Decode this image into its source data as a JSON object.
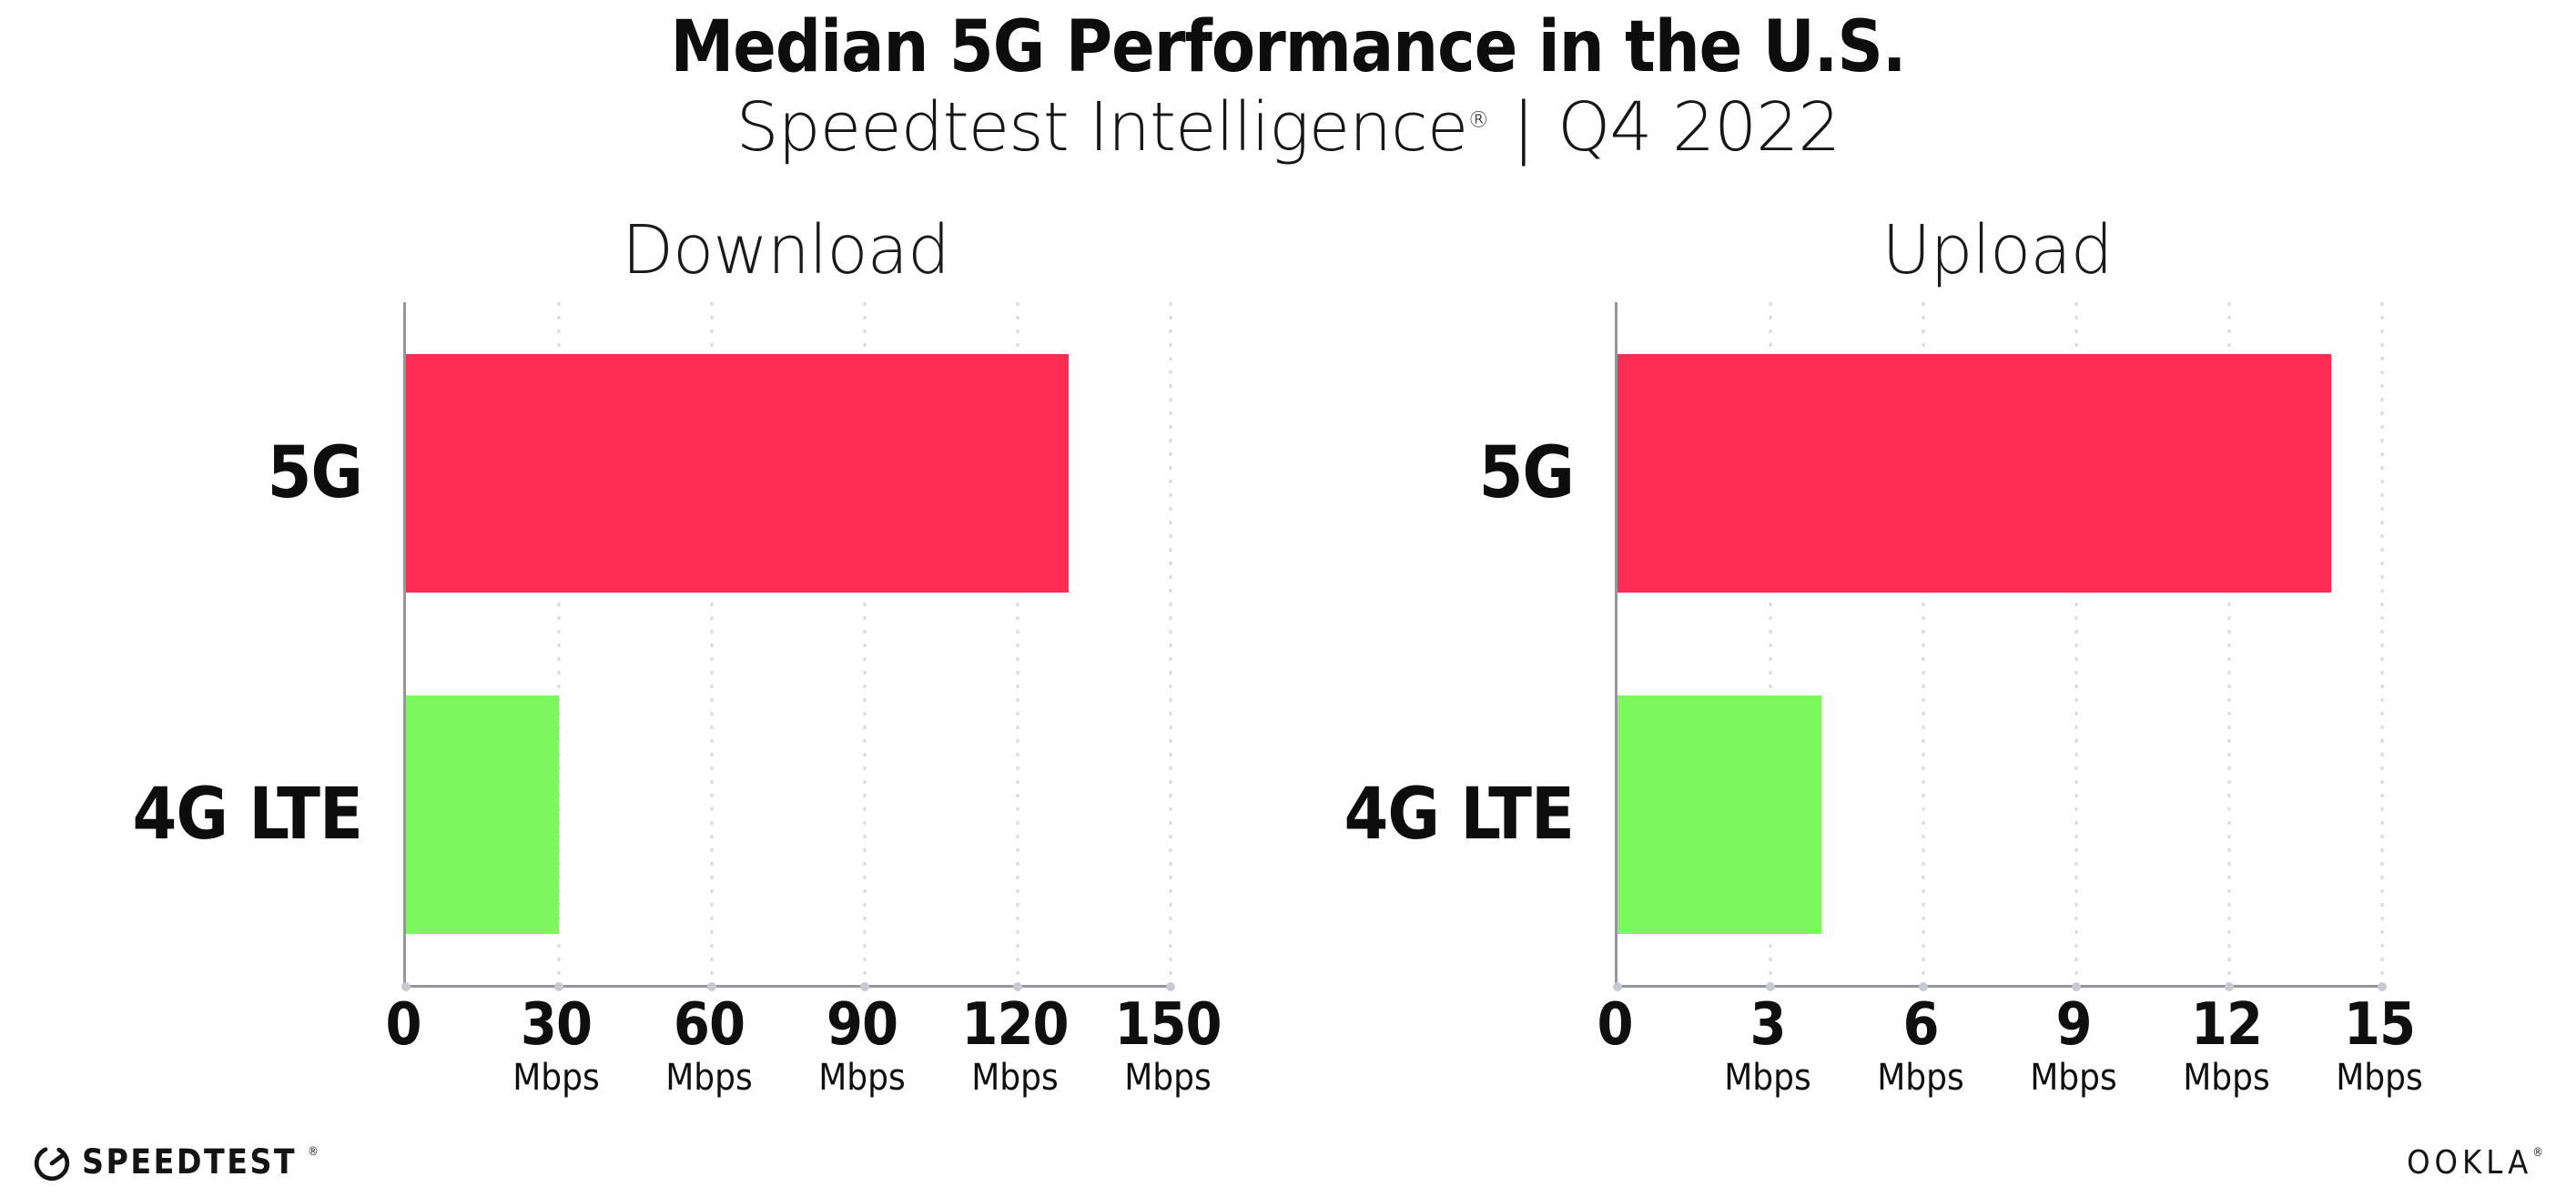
{
  "header": {
    "title": "Median 5G Performance in the U.S.",
    "subtitle_brand": "Speedtest Intelligence",
    "subtitle_reg": "®",
    "subtitle_divider": "|",
    "subtitle_period": "Q4 2022"
  },
  "chart_data": [
    {
      "type": "bar",
      "orientation": "horizontal",
      "title": "Download",
      "categories": [
        "5G",
        "4G LTE"
      ],
      "values": [
        130,
        30
      ],
      "unit": "Mbps",
      "xlabel": "",
      "ylabel": "",
      "xlim": [
        0,
        150
      ],
      "xticks": [
        0,
        30,
        60,
        90,
        120,
        150
      ],
      "bar_colors": [
        "#FF2D55",
        "#7CF85E"
      ],
      "grid": "dotted-vertical",
      "legend": "none"
    },
    {
      "type": "bar",
      "orientation": "horizontal",
      "title": "Upload",
      "categories": [
        "5G",
        "4G LTE"
      ],
      "values": [
        14,
        4
      ],
      "unit": "Mbps",
      "xlabel": "",
      "ylabel": "",
      "xlim": [
        0,
        15
      ],
      "xticks": [
        0,
        3,
        6,
        9,
        12,
        15
      ],
      "bar_colors": [
        "#FF2D55",
        "#7CF85E"
      ],
      "grid": "dotted-vertical",
      "legend": "none"
    }
  ],
  "footer": {
    "speedtest_label": "SPEEDTEST",
    "speedtest_reg": "®",
    "speedtest_icon": "speedtest-gauge-icon",
    "ookla_label": "OOKLA",
    "ookla_reg": "®"
  },
  "colors": {
    "bar_5g": "#FF2D55",
    "bar_4g_lte": "#7CF85E",
    "axis": "#95959C",
    "gridline": "#DADAE2",
    "tick_dot": "#C9C9D2",
    "text": "#111111"
  }
}
